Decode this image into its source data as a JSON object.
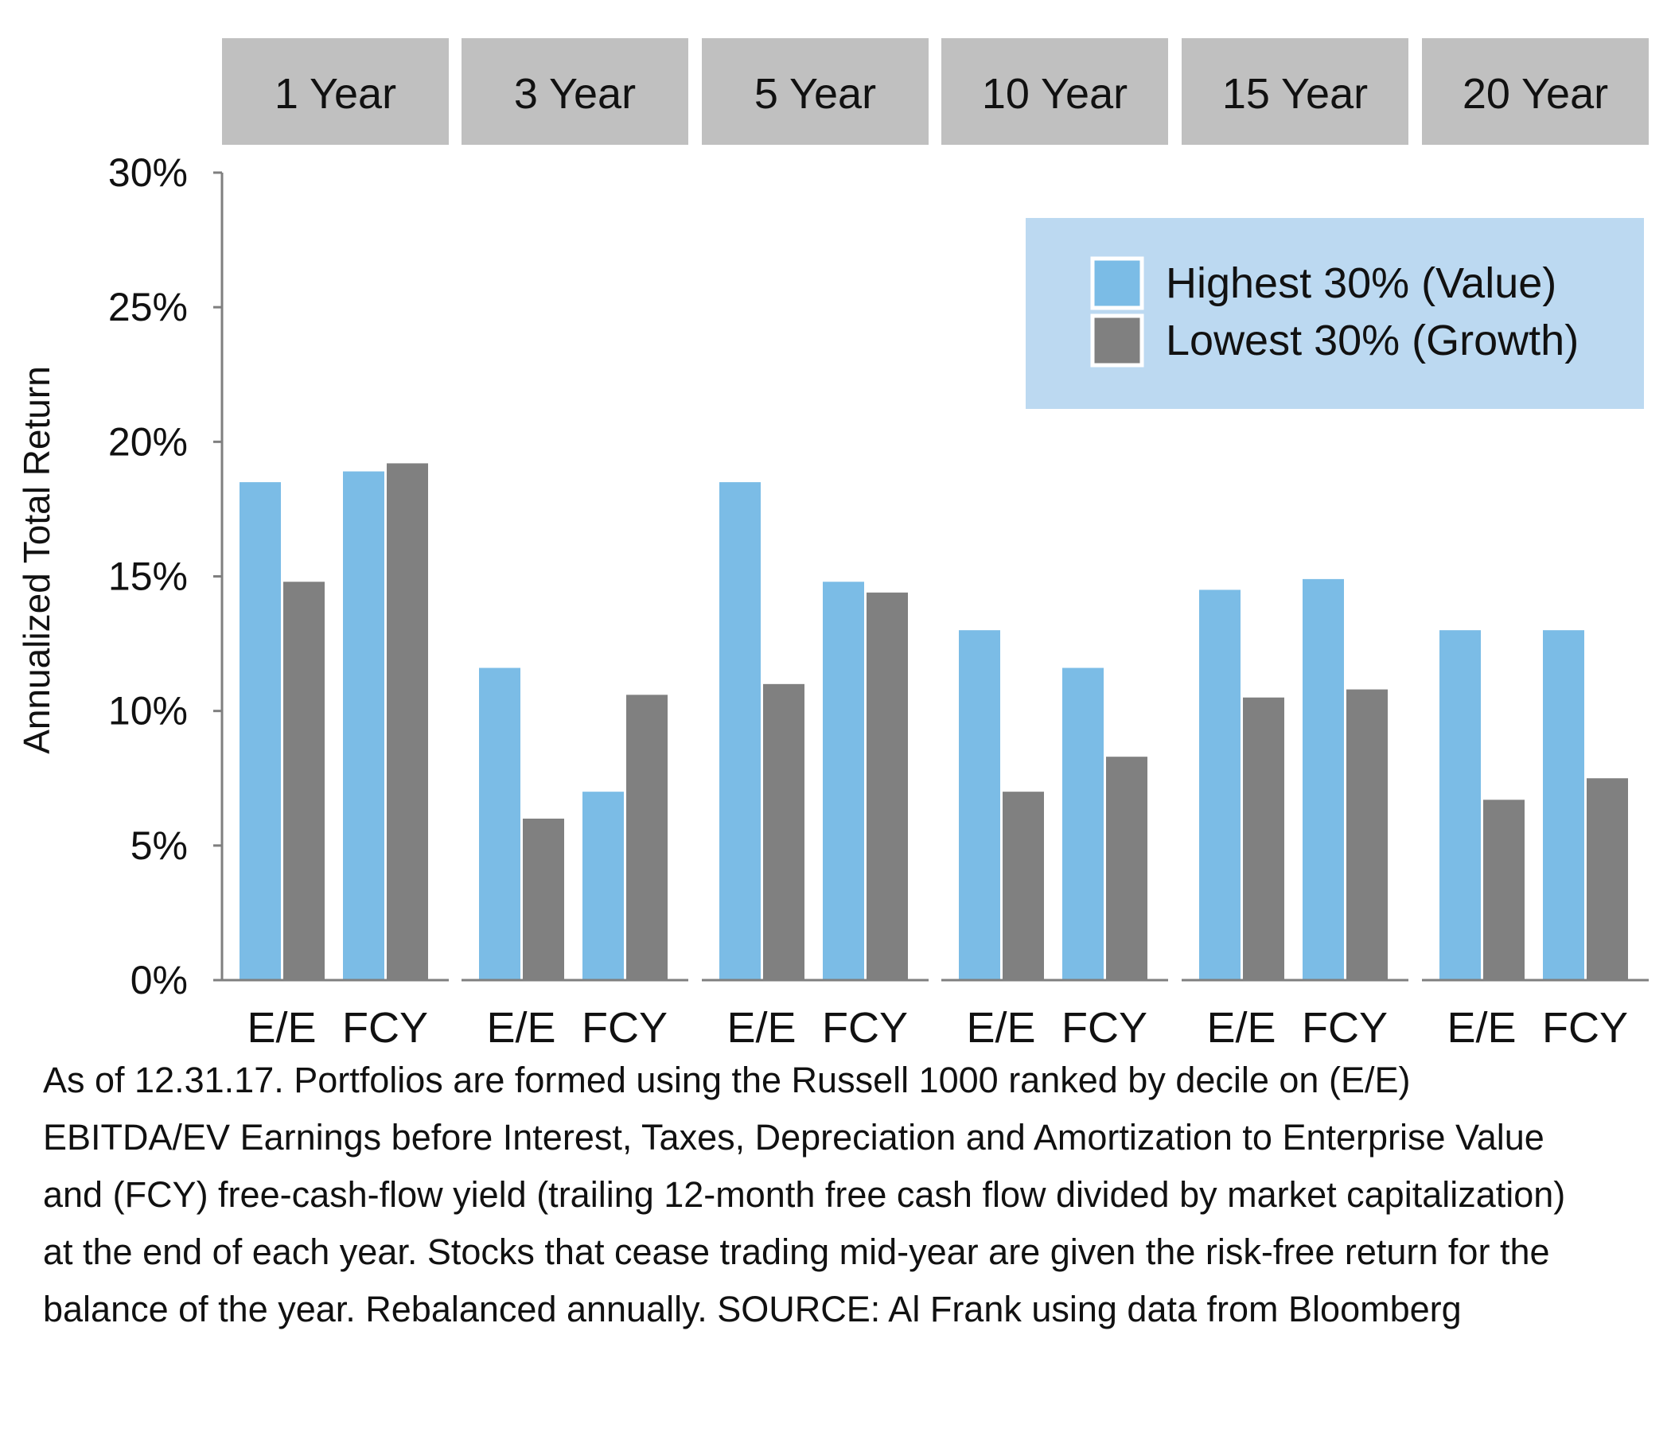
{
  "chart_data": {
    "type": "bar",
    "ylabel": "Annualized Total Return",
    "ylim": [
      0,
      30
    ],
    "yticks": [
      0,
      5,
      10,
      15,
      20,
      25,
      30
    ],
    "ytick_labels": [
      "0%",
      "5%",
      "10%",
      "15%",
      "20%",
      "25%",
      "30%"
    ],
    "panels": [
      "1 Year",
      "3 Year",
      "5 Year",
      "10 Year",
      "15 Year",
      "20 Year"
    ],
    "categories": [
      "E/E",
      "FCY"
    ],
    "series": [
      {
        "name": "Highest 30% (Value)",
        "color": "#7bbce6",
        "values": [
          [
            18.5,
            18.9
          ],
          [
            11.6,
            7.0
          ],
          [
            18.5,
            14.8
          ],
          [
            13.0,
            11.6
          ],
          [
            14.5,
            14.9
          ],
          [
            13.0,
            13.0
          ]
        ]
      },
      {
        "name": "Lowest 30% (Growth)",
        "color": "#808080",
        "values": [
          [
            14.8,
            19.2
          ],
          [
            6.0,
            10.6
          ],
          [
            11.0,
            14.4
          ],
          [
            7.0,
            8.3
          ],
          [
            10.5,
            10.8
          ],
          [
            6.7,
            7.5
          ]
        ]
      }
    ],
    "legend_position": "top-right",
    "grid": false
  },
  "colors": {
    "panel_header": "#c0c0c0",
    "legend_bg": "#bcd9f1",
    "axis": "#7f7f7f"
  },
  "footnote": "As of 12.31.17. Portfolios are formed using the Russell 1000 ranked by decile on (E/E) EBITDA/EV Earnings before Interest, Taxes, Depreciation and Amortization to Enterprise Value and (FCY) free-cash-flow yield (trailing 12-month free cash flow divided by market capitalization) at the end of each year. Stocks that cease trading mid-year are given the risk-free return for the balance of the year. Rebalanced annually. SOURCE: Al Frank using data from Bloomberg"
}
